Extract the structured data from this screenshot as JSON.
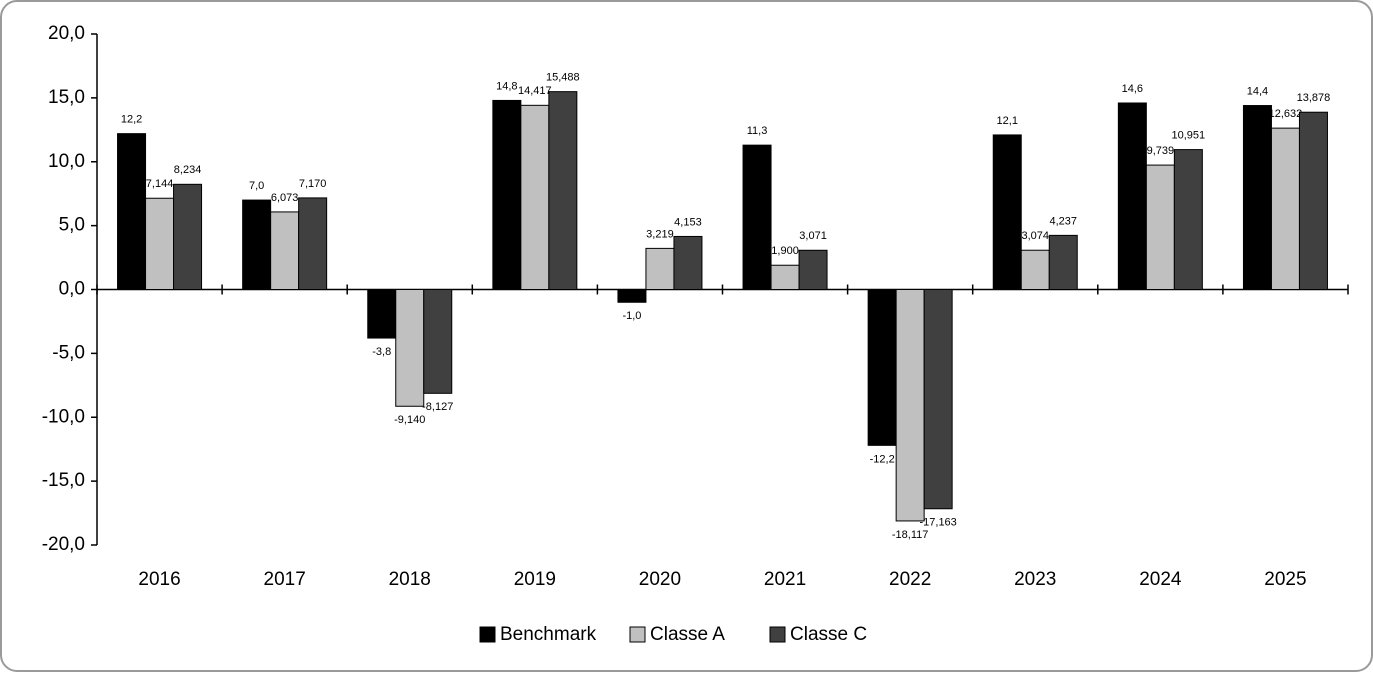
{
  "chart_data": {
    "type": "bar",
    "categories": [
      "2016",
      "2017",
      "2018",
      "2019",
      "2020",
      "2021",
      "2022",
      "2023",
      "2024",
      "2025"
    ],
    "series": [
      {
        "name": "Benchmark",
        "color": "#000000",
        "values": [
          12.2,
          7.0,
          -3.8,
          14.8,
          -1.0,
          11.3,
          -12.2,
          12.1,
          14.6,
          14.4
        ],
        "value_labels": [
          "12,2",
          "7,0",
          "-3,8",
          "14,8",
          "-1,0",
          "11,3",
          "-12,2",
          "12,1",
          "14,6",
          "14,4"
        ]
      },
      {
        "name": "Classe A",
        "color": "#c0c0c0",
        "values": [
          7.144,
          6.073,
          -9.14,
          14.417,
          3.219,
          1.9,
          -18.117,
          3.074,
          9.739,
          12.632
        ],
        "value_labels": [
          "7,144",
          "6,073",
          "-9,140",
          "14,417",
          "3,219",
          "1,900",
          "-18,117",
          "3,074",
          "9,739",
          "12,632"
        ]
      },
      {
        "name": "Classe C",
        "color": "#404040",
        "values": [
          8.234,
          7.17,
          -8.127,
          15.488,
          4.153,
          3.071,
          -17.163,
          4.237,
          10.951,
          13.878
        ],
        "value_labels": [
          "8,234",
          "7,170",
          "-8,127",
          "15,488",
          "4,153",
          "3,071",
          "-17,163",
          "4,237",
          "10,951",
          "13,878"
        ]
      }
    ],
    "ylim": [
      -20,
      20
    ],
    "yticks": [
      {
        "value": -20,
        "label": "-20,0"
      },
      {
        "value": -15,
        "label": "-15,0"
      },
      {
        "value": -10,
        "label": "-10,0"
      },
      {
        "value": -5,
        "label": "-5,0"
      },
      {
        "value": 0,
        "label": "0,0"
      },
      {
        "value": 5,
        "label": "5,0"
      },
      {
        "value": 10,
        "label": "10,0"
      },
      {
        "value": 15,
        "label": "15,0"
      },
      {
        "value": 20,
        "label": "20,0"
      }
    ],
    "grid": false
  }
}
